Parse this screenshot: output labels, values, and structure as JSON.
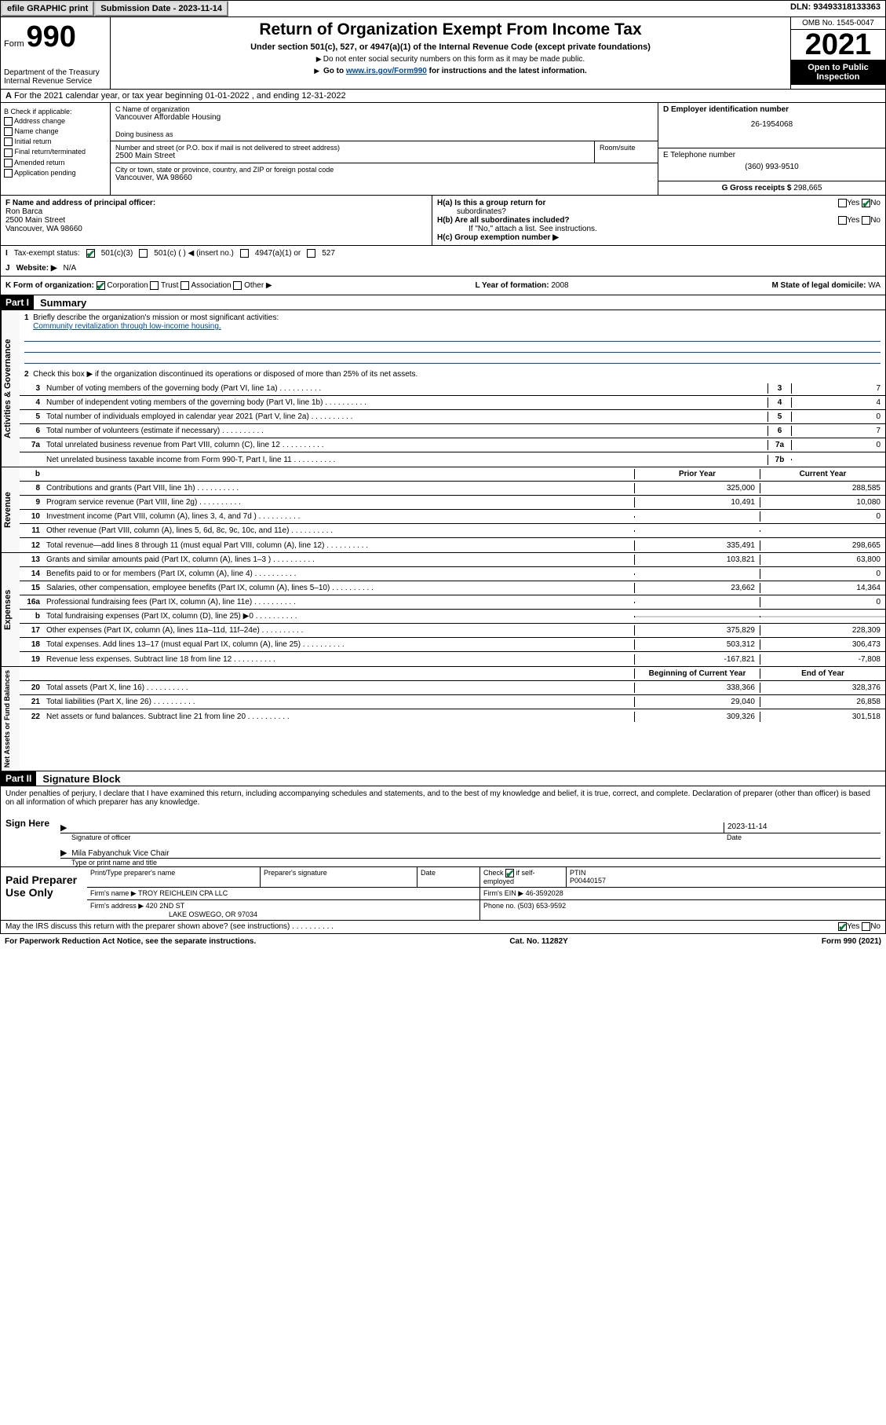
{
  "top": {
    "efile": "efile GRAPHIC print",
    "sub_date_lbl": "Submission Date - 2023-11-14",
    "dln": "DLN: 93493318133363"
  },
  "header": {
    "form": "Form",
    "num": "990",
    "dept": "Department of the Treasury",
    "irs": "Internal Revenue Service",
    "title": "Return of Organization Exempt From Income Tax",
    "sub": "Under section 501(c), 527, or 4947(a)(1) of the Internal Revenue Code (except private foundations)",
    "note1": "Do not enter social security numbers on this form as it may be made public.",
    "note2_pre": "Go to ",
    "note2_link": "www.irs.gov/Form990",
    "note2_post": " for instructions and the latest information.",
    "omb": "OMB No. 1545-0047",
    "year": "2021",
    "open": "Open to Public Inspection"
  },
  "row_a": "For the 2021 calendar year, or tax year beginning 01-01-2022    , and ending 12-31-2022",
  "row_a_lbl": "A",
  "b": {
    "lbl": "B Check if applicable:",
    "opts": [
      "Address change",
      "Name change",
      "Initial return",
      "Final return/terminated",
      "Amended return",
      "Application pending"
    ]
  },
  "c": {
    "name_lbl": "C Name of organization",
    "name": "Vancouver Affordable Housing",
    "dba_lbl": "Doing business as",
    "addr_lbl": "Number and street (or P.O. box if mail is not delivered to street address)",
    "room_lbl": "Room/suite",
    "addr": "2500 Main Street",
    "city_lbl": "City or town, state or province, country, and ZIP or foreign postal code",
    "city": "Vancouver, WA   98660"
  },
  "d": {
    "lbl": "D Employer identification number",
    "val": "26-1954068"
  },
  "e": {
    "lbl": "E Telephone number",
    "val": "(360) 993-9510"
  },
  "g": {
    "lbl": "G Gross receipts $",
    "val": "298,665"
  },
  "f": {
    "lbl": "F Name and address of principal officer:",
    "name": "Ron Barca",
    "addr1": "2500 Main Street",
    "addr2": "Vancouver, WA   98660"
  },
  "h": {
    "a_lbl": "H(a)   Is this a group return for",
    "a_sub": "subordinates?",
    "b_lbl": "H(b)   Are all subordinates included?",
    "b_note": "If \"No,\" attach a list. See instructions.",
    "c_lbl": "H(c)   Group exemption number ▶",
    "yes": "Yes",
    "no": "No"
  },
  "i": {
    "lbl": "Tax-exempt status:",
    "o1": "501(c)(3)",
    "o2": "501(c) (   ) ◀ (insert no.)",
    "o3": "4947(a)(1) or",
    "o4": "527"
  },
  "j": {
    "lbl": "Website: ▶",
    "val": "N/A"
  },
  "k": {
    "lbl": "K Form of organization:",
    "opts": [
      "Corporation",
      "Trust",
      "Association",
      "Other ▶"
    ],
    "l_lbl": "L Year of formation:",
    "l_val": "2008",
    "m_lbl": "M State of legal domicile:",
    "m_val": "WA"
  },
  "part1": {
    "hdr": "Part I",
    "title": "Summary"
  },
  "summary": {
    "q1_lbl": "1",
    "q1": "Briefly describe the organization's mission or most significant activities:",
    "q1_val": "Community revitalization through low-income housing.",
    "q2_lbl": "2",
    "q2": "Check this box ▶        if the organization discontinued its operations or disposed of more than 25% of its net assets.",
    "rows": [
      {
        "n": "3",
        "d": "Number of voting members of the governing body (Part VI, line 1a)",
        "box": "3",
        "v": "7"
      },
      {
        "n": "4",
        "d": "Number of independent voting members of the governing body (Part VI, line 1b)",
        "box": "4",
        "v": "4"
      },
      {
        "n": "5",
        "d": "Total number of individuals employed in calendar year 2021 (Part V, line 2a)",
        "box": "5",
        "v": "0"
      },
      {
        "n": "6",
        "d": "Total number of volunteers (estimate if necessary)",
        "box": "6",
        "v": "7"
      },
      {
        "n": "7a",
        "d": "Total unrelated business revenue from Part VIII, column (C), line 12",
        "box": "7a",
        "v": "0"
      },
      {
        "n": "",
        "d": "Net unrelated business taxable income from Form 990-T, Part I, line 11",
        "box": "7b",
        "v": ""
      }
    ]
  },
  "fin_hdr": {
    "b": "b",
    "prior": "Prior Year",
    "curr": "Current Year"
  },
  "revenue": {
    "label": "Revenue",
    "rows": [
      {
        "n": "8",
        "d": "Contributions and grants (Part VIII, line 1h)",
        "p": "325,000",
        "c": "288,585"
      },
      {
        "n": "9",
        "d": "Program service revenue (Part VIII, line 2g)",
        "p": "10,491",
        "c": "10,080"
      },
      {
        "n": "10",
        "d": "Investment income (Part VIII, column (A), lines 3, 4, and 7d )",
        "p": "",
        "c": "0"
      },
      {
        "n": "11",
        "d": "Other revenue (Part VIII, column (A), lines 5, 6d, 8c, 9c, 10c, and 11e)",
        "p": "",
        "c": ""
      },
      {
        "n": "12",
        "d": "Total revenue—add lines 8 through 11 (must equal Part VIII, column (A), line 12)",
        "p": "335,491",
        "c": "298,665"
      }
    ]
  },
  "expenses": {
    "label": "Expenses",
    "rows": [
      {
        "n": "13",
        "d": "Grants and similar amounts paid (Part IX, column (A), lines 1–3 )",
        "p": "103,821",
        "c": "63,800"
      },
      {
        "n": "14",
        "d": "Benefits paid to or for members (Part IX, column (A), line 4)",
        "p": "",
        "c": "0"
      },
      {
        "n": "15",
        "d": "Salaries, other compensation, employee benefits (Part IX, column (A), lines 5–10)",
        "p": "23,662",
        "c": "14,364"
      },
      {
        "n": "16a",
        "d": "Professional fundraising fees (Part IX, column (A), line 11e)",
        "p": "",
        "c": "0"
      },
      {
        "n": "b",
        "d": "Total fundraising expenses (Part IX, column (D), line 25) ▶0",
        "p": "shade",
        "c": "shade"
      },
      {
        "n": "17",
        "d": "Other expenses (Part IX, column (A), lines 11a–11d, 11f–24e)",
        "p": "375,829",
        "c": "228,309"
      },
      {
        "n": "18",
        "d": "Total expenses. Add lines 13–17 (must equal Part IX, column (A), line 25)",
        "p": "503,312",
        "c": "306,473"
      },
      {
        "n": "19",
        "d": "Revenue less expenses. Subtract line 18 from line 12",
        "p": "-167,821",
        "c": "-7,808"
      }
    ]
  },
  "netassets": {
    "label": "Net Assets or Fund Balances",
    "hdr_p": "Beginning of Current Year",
    "hdr_c": "End of Year",
    "rows": [
      {
        "n": "20",
        "d": "Total assets (Part X, line 16)",
        "p": "338,366",
        "c": "328,376"
      },
      {
        "n": "21",
        "d": "Total liabilities (Part X, line 26)",
        "p": "29,040",
        "c": "26,858"
      },
      {
        "n": "22",
        "d": "Net assets or fund balances. Subtract line 21 from line 20",
        "p": "309,326",
        "c": "301,518"
      }
    ]
  },
  "part2": {
    "hdr": "Part II",
    "title": "Signature Block"
  },
  "sig": {
    "decl": "Under penalties of perjury, I declare that I have examined this return, including accompanying schedules and statements, and to the best of my knowledge and belief, it is true, correct, and complete. Declaration of preparer (other than officer) is based on all information of which preparer has any knowledge.",
    "sign_here": "Sign Here",
    "sig_officer": "Signature of officer",
    "date_lbl": "Date",
    "date": "2023-11-14",
    "name": "Mila Fabyanchuk  Vice Chair",
    "name_lbl": "Type or print name and title"
  },
  "paid": {
    "title": "Paid Preparer Use Only",
    "h1": "Print/Type preparer's name",
    "h2": "Preparer's signature",
    "h3": "Date",
    "h4_chk": "Check",
    "h4_if": "if self-employed",
    "h5": "PTIN",
    "ptin": "P00440157",
    "firm_name_lbl": "Firm's name      ▶",
    "firm_name": "TROY REICHLEIN CPA LLC",
    "firm_ein_lbl": "Firm's EIN ▶",
    "firm_ein": "46-3592028",
    "firm_addr_lbl": "Firm's address ▶",
    "firm_addr1": "420 2ND ST",
    "firm_addr2": "LAKE OSWEGO, OR   97034",
    "phone_lbl": "Phone no.",
    "phone": "(503) 653-9592"
  },
  "footer": {
    "discuss": "May the IRS discuss this return with the preparer shown above? (see instructions)",
    "yes": "Yes",
    "no": "No",
    "paperwork": "For Paperwork Reduction Act Notice, see the separate instructions.",
    "cat": "Cat. No. 11282Y",
    "form": "Form 990 (2021)"
  },
  "i_lbl": "I",
  "j_lbl": "J",
  "act_gov_label": "Activities & Governance"
}
